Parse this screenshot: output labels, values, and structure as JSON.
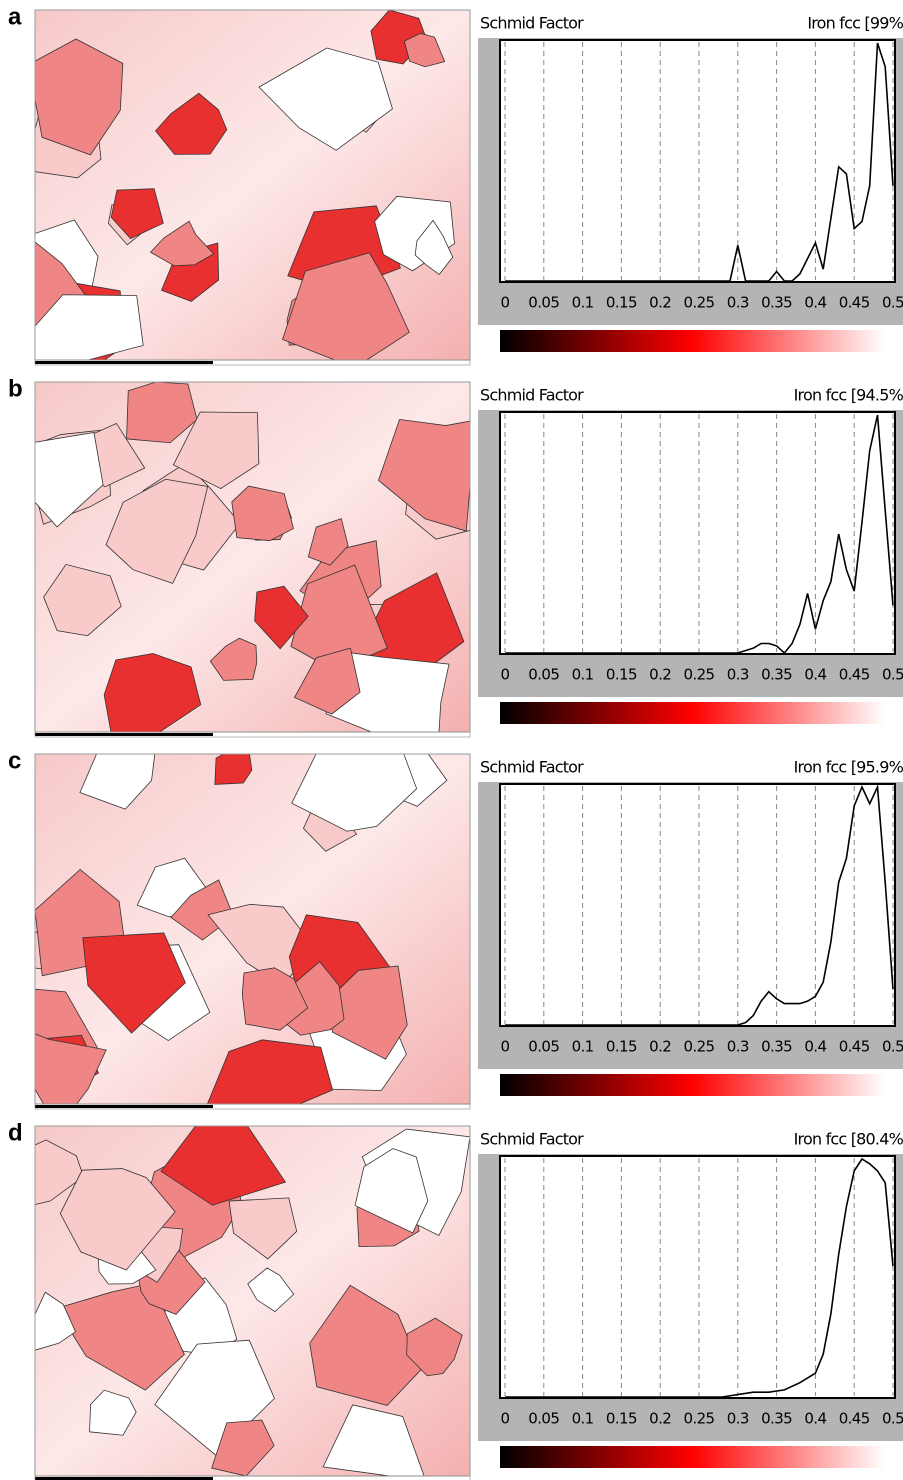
{
  "chart_data": [
    {
      "type": "line",
      "panel_label": "a",
      "title": "Schmid Factor",
      "subtitle": "Iron fcc [99%",
      "x": [
        0,
        0.29,
        0.3,
        0.31,
        0.34,
        0.35,
        0.36,
        0.37,
        0.38,
        0.4,
        0.41,
        0.43,
        0.44,
        0.45,
        0.46,
        0.47,
        0.48,
        0.49,
        0.5
      ],
      "values": [
        0,
        0,
        15,
        0,
        0,
        4,
        0,
        0,
        3,
        16,
        5,
        48,
        45,
        22,
        25,
        40,
        100,
        90,
        40
      ],
      "color": "#000000",
      "xlim": [
        0,
        0.5
      ],
      "ylim": [
        0,
        100
      ],
      "xticks": [
        0,
        0.05,
        0.1,
        0.15,
        0.2,
        0.25,
        0.3,
        0.35,
        0.4,
        0.45,
        0.5
      ],
      "grid": true
    },
    {
      "type": "line",
      "panel_label": "b",
      "title": "Schmid Factor",
      "subtitle": "Iron fcc [94.5%",
      "x": [
        0,
        0.3,
        0.32,
        0.33,
        0.34,
        0.35,
        0.36,
        0.37,
        0.38,
        0.39,
        0.4,
        0.41,
        0.42,
        0.43,
        0.44,
        0.45,
        0.46,
        0.47,
        0.48,
        0.49,
        0.5
      ],
      "values": [
        0,
        0,
        2,
        4,
        4,
        3,
        0,
        4,
        12,
        25,
        10,
        22,
        30,
        50,
        35,
        26,
        55,
        85,
        100,
        60,
        20
      ],
      "color": "#000000",
      "xlim": [
        0,
        0.5
      ],
      "ylim": [
        0,
        100
      ],
      "xticks": [
        0,
        0.05,
        0.1,
        0.15,
        0.2,
        0.25,
        0.3,
        0.35,
        0.4,
        0.45,
        0.5
      ],
      "grid": true
    },
    {
      "type": "line",
      "panel_label": "c",
      "title": "Schmid Factor",
      "subtitle": "Iron fcc [95.9%",
      "x": [
        0,
        0.3,
        0.31,
        0.32,
        0.33,
        0.34,
        0.35,
        0.36,
        0.37,
        0.38,
        0.39,
        0.4,
        0.41,
        0.42,
        0.43,
        0.44,
        0.45,
        0.46,
        0.47,
        0.48,
        0.49,
        0.5
      ],
      "values": [
        0,
        0,
        1,
        4,
        10,
        14,
        11,
        9,
        9,
        9,
        10,
        12,
        18,
        35,
        60,
        70,
        92,
        100,
        93,
        100,
        60,
        15
      ],
      "color": "#000000",
      "xlim": [
        0,
        0.5
      ],
      "ylim": [
        0,
        100
      ],
      "xticks": [
        0,
        0.05,
        0.1,
        0.15,
        0.2,
        0.25,
        0.3,
        0.35,
        0.4,
        0.45,
        0.5
      ],
      "grid": true
    },
    {
      "type": "line",
      "panel_label": "d",
      "title": "Schmid Factor",
      "subtitle": "Iron fcc [80.4%",
      "x": [
        0,
        0.28,
        0.3,
        0.32,
        0.34,
        0.36,
        0.38,
        0.4,
        0.41,
        0.42,
        0.43,
        0.44,
        0.45,
        0.46,
        0.47,
        0.48,
        0.49,
        0.5
      ],
      "values": [
        0,
        0,
        1,
        2,
        2,
        3,
        6,
        10,
        18,
        35,
        60,
        80,
        95,
        100,
        98,
        95,
        90,
        55
      ],
      "color": "#000000",
      "xlim": [
        0,
        0.5
      ],
      "ylim": [
        0,
        100
      ],
      "xticks": [
        0,
        0.05,
        0.1,
        0.15,
        0.2,
        0.25,
        0.3,
        0.35,
        0.4,
        0.45,
        0.5
      ],
      "grid": true
    }
  ]
}
